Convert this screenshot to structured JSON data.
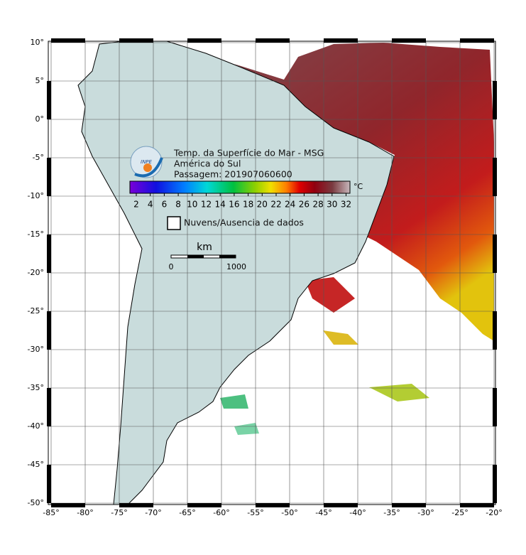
{
  "header": {
    "title": "Temp. da Superfície do Mar - MSG",
    "region": "América do Sul",
    "pass": "Passagem: 201907060600",
    "logo": "INPE"
  },
  "colorbar": {
    "ticks": [
      "2",
      "4",
      "6",
      "8",
      "10",
      "12",
      "14",
      "16",
      "18",
      "20",
      "22",
      "24",
      "26",
      "28",
      "30",
      "32"
    ],
    "unit": "°C"
  },
  "legend": {
    "label": "Nuvens/Ausencia de dados"
  },
  "scale": {
    "unit": "km",
    "start": "0",
    "end": "1000"
  },
  "axes": {
    "lat_ticks": [
      "10°",
      "5°",
      "0°",
      "-5°",
      "-10°",
      "-15°",
      "-20°",
      "-25°",
      "-30°",
      "-35°",
      "-40°",
      "-45°",
      "-50°"
    ],
    "lon_ticks": [
      "-85°",
      "-80°",
      "-75°",
      "-70°",
      "-65°",
      "-60°",
      "-55°",
      "-50°",
      "-45°",
      "-40°",
      "-35°",
      "-30°",
      "-25°",
      "-20°"
    ]
  }
}
